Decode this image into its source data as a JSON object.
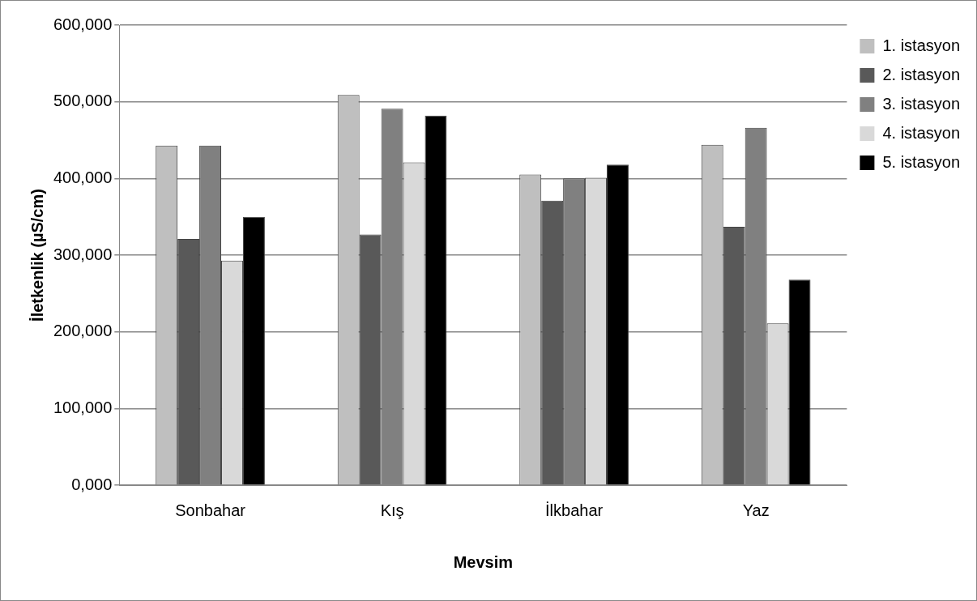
{
  "chart_data": {
    "type": "bar",
    "xlabel": "Mevsim",
    "ylabel": "İletkenlik (µS/cm)",
    "categories": [
      "Sonbahar",
      "Kış",
      "İlkbahar",
      "Yaz"
    ],
    "series": [
      {
        "name": "1. istasyon",
        "color": "#bfbfbf",
        "values": [
          443000,
          509000,
          405000,
          444000
        ]
      },
      {
        "name": "2. istasyon",
        "color": "#595959",
        "values": [
          321000,
          327000,
          371000,
          337000
        ]
      },
      {
        "name": "3. istasyon",
        "color": "#808080",
        "values": [
          443000,
          491000,
          400000,
          466000
        ]
      },
      {
        "name": "4. istasyon",
        "color": "#d9d9d9",
        "values": [
          293000,
          421000,
          401000,
          211000
        ]
      },
      {
        "name": "5. istasyon",
        "color": "#000000",
        "values": [
          350000,
          482000,
          418000,
          268000
        ]
      }
    ],
    "ylim": [
      0,
      600000
    ],
    "yticks": [
      {
        "value": 0,
        "label": "0,000"
      },
      {
        "value": 100000,
        "label": "100,000"
      },
      {
        "value": 200000,
        "label": "200,000"
      },
      {
        "value": 300000,
        "label": "300,000"
      },
      {
        "value": 400000,
        "label": "400,000"
      },
      {
        "value": 500000,
        "label": "500,000"
      },
      {
        "value": 600000,
        "label": "600,000"
      }
    ],
    "grid": "y",
    "legend": "right"
  }
}
